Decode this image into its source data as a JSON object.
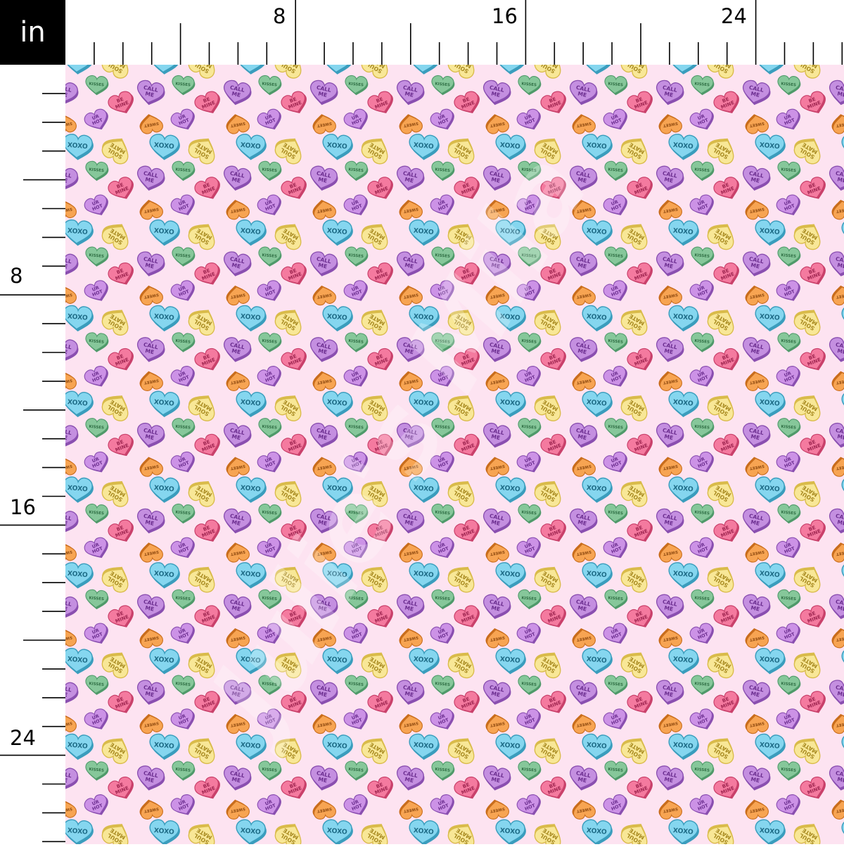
{
  "unit_label": "in",
  "ruler": {
    "top_labels": [
      "8",
      "16",
      "24"
    ],
    "left_labels": [
      "8",
      "16",
      "24"
    ]
  },
  "watermark": "Julie's Mila",
  "colors": {
    "background": "#fde3f1",
    "ruler_background": "#ffffff",
    "unit_box": "#000000"
  },
  "hearts": [
    {
      "name": "kisses",
      "lines": [
        "KISSES"
      ],
      "fill": "#86c79a",
      "edge": "#4f9a6a",
      "ink": "#2f6e44"
    },
    {
      "name": "call-me",
      "lines": [
        "CALL",
        "ME"
      ],
      "fill": "#c48fe0",
      "edge": "#8a4fb0",
      "ink": "#6b2d8f"
    },
    {
      "name": "be-mine",
      "lines": [
        "BE",
        "MINE"
      ],
      "fill": "#f47a9f",
      "edge": "#c9416b",
      "ink": "#a12752"
    },
    {
      "name": "ur-hot",
      "lines": [
        "UR",
        "HOT"
      ],
      "fill": "#cc92e6",
      "edge": "#8a4fb0",
      "ink": "#6b2d8f"
    },
    {
      "name": "sweet",
      "lines": [
        "SWEET"
      ],
      "fill": "#f7a452",
      "edge": "#c96d1c",
      "ink": "#8f4a10"
    },
    {
      "name": "xoxo",
      "lines": [
        "XOXO"
      ],
      "fill": "#85d6ef",
      "edge": "#3a9dbd",
      "ink": "#1f6d88"
    },
    {
      "name": "soul-mate",
      "lines": [
        "SOUL",
        "MATE"
      ],
      "fill": "#f8e797",
      "edge": "#d9bb4a",
      "ink": "#a88a20"
    }
  ]
}
